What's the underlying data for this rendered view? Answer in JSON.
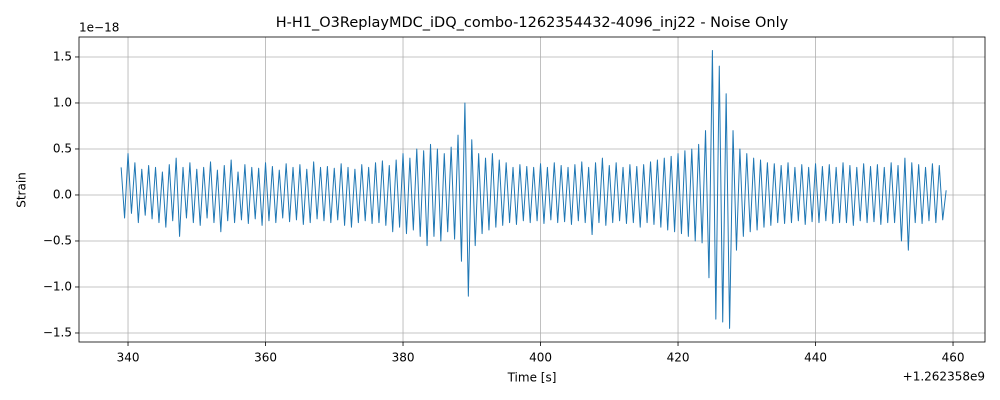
{
  "chart_data": {
    "type": "line",
    "title": "H-H1_O3ReplayMDC_iDQ_combo-1262354432-4096_inj22 - Noise Only",
    "xlabel": "Time [s]",
    "ylabel": "Strain",
    "x_offset_label": "+1.262358e9",
    "y_offset_label": "1e−18",
    "color": "#1f77b4",
    "grid": true,
    "xlim": [
      332.87,
      464.65
    ],
    "ylim": [
      -1.598,
      1.717
    ],
    "xticks": [
      340,
      360,
      380,
      400,
      420,
      440,
      460
    ],
    "yticks": [
      {
        "value": -1.5,
        "label": "−1.5"
      },
      {
        "value": -1.0,
        "label": "−1.0"
      },
      {
        "value": -0.5,
        "label": "−0.5"
      },
      {
        "value": 0,
        "label": "0.0"
      },
      0.5,
      {
        "value": 1.0,
        "label": "1.0"
      },
      1.5
    ],
    "x": [
      339,
      339.5,
      340,
      340.5,
      341,
      341.5,
      342,
      342.5,
      343,
      343.5,
      344,
      344.5,
      345,
      345.5,
      346,
      346.5,
      347,
      347.5,
      348,
      348.5,
      349,
      349.5,
      350,
      350.5,
      351,
      351.5,
      352,
      352.5,
      353,
      353.5,
      354,
      354.5,
      355,
      355.5,
      356,
      356.5,
      357,
      357.5,
      358,
      358.5,
      359,
      359.5,
      360,
      360.5,
      361,
      361.5,
      362,
      362.5,
      363,
      363.5,
      364,
      364.5,
      365,
      365.5,
      366,
      366.5,
      367,
      367.5,
      368,
      368.5,
      369,
      369.5,
      370,
      370.5,
      371,
      371.5,
      372,
      372.5,
      373,
      373.5,
      374,
      374.5,
      375,
      375.5,
      376,
      376.5,
      377,
      377.5,
      378,
      378.5,
      379,
      379.5,
      380,
      380.5,
      381,
      381.5,
      382,
      382.5,
      383,
      383.5,
      384,
      384.5,
      385,
      385.5,
      386,
      386.5,
      387,
      387.5,
      388,
      388.5,
      389,
      389.5,
      390,
      390.5,
      391,
      391.5,
      392,
      392.5,
      393,
      393.5,
      394,
      394.5,
      395,
      395.5,
      396,
      396.5,
      397,
      397.5,
      398,
      398.5,
      399,
      399.5,
      400,
      400.5,
      401,
      401.5,
      402,
      402.5,
      403,
      403.5,
      404,
      404.5,
      405,
      405.5,
      406,
      406.5,
      407,
      407.5,
      408,
      408.5,
      409,
      409.5,
      410,
      410.5,
      411,
      411.5,
      412,
      412.5,
      413,
      413.5,
      414,
      414.5,
      415,
      415.5,
      416,
      416.5,
      417,
      417.5,
      418,
      418.5,
      419,
      419.5,
      420,
      420.5,
      421,
      421.5,
      422,
      422.5,
      423,
      423.5,
      424,
      424.5,
      425,
      425.5,
      426,
      426.5,
      427,
      427.5,
      428,
      428.5,
      429,
      429.5,
      430,
      430.5,
      431,
      431.5,
      432,
      432.5,
      433,
      433.5,
      434,
      434.5,
      435,
      435.5,
      436,
      436.5,
      437,
      437.5,
      438,
      438.5,
      439,
      439.5,
      440,
      440.5,
      441,
      441.5,
      442,
      442.5,
      443,
      443.5,
      444,
      444.5,
      445,
      445.5,
      446,
      446.5,
      447,
      447.5,
      448,
      448.5,
      449,
      449.5,
      450,
      450.5,
      451,
      451.5,
      452,
      452.5,
      453,
      453.5,
      454,
      454.5,
      455,
      455.5,
      456,
      456.5,
      457,
      457.5,
      458,
      458.5,
      459
    ],
    "values": [
      0.3,
      -0.25,
      0.45,
      -0.2,
      0.35,
      -0.3,
      0.28,
      -0.22,
      0.32,
      -0.26,
      0.3,
      -0.3,
      0.25,
      -0.35,
      0.33,
      -0.28,
      0.4,
      -0.45,
      0.3,
      -0.25,
      0.35,
      -0.3,
      0.28,
      -0.33,
      0.3,
      -0.25,
      0.36,
      -0.3,
      0.27,
      -0.4,
      0.32,
      -0.28,
      0.38,
      -0.3,
      0.25,
      -0.27,
      0.33,
      -0.31,
      0.3,
      -0.26,
      0.29,
      -0.33,
      0.35,
      -0.28,
      0.31,
      -0.3,
      0.27,
      -0.25,
      0.34,
      -0.29,
      0.3,
      -0.27,
      0.33,
      -0.32,
      0.28,
      -0.3,
      0.36,
      -0.26,
      0.3,
      -0.28,
      0.31,
      -0.3,
      0.29,
      -0.27,
      0.34,
      -0.33,
      0.3,
      -0.35,
      0.28,
      -0.3,
      0.33,
      -0.28,
      0.3,
      -0.31,
      0.35,
      -0.3,
      0.37,
      -0.33,
      0.32,
      -0.4,
      0.38,
      -0.35,
      0.45,
      -0.42,
      0.4,
      -0.38,
      0.5,
      -0.45,
      0.48,
      -0.55,
      0.55,
      -0.45,
      0.5,
      -0.5,
      0.45,
      -0.4,
      0.52,
      -0.48,
      0.65,
      -0.72,
      1.0,
      -1.1,
      0.6,
      -0.55,
      0.45,
      -0.42,
      0.4,
      -0.38,
      0.45,
      -0.35,
      0.38,
      -0.33,
      0.35,
      -0.3,
      0.3,
      -0.32,
      0.33,
      -0.28,
      0.31,
      -0.3,
      0.3,
      -0.28,
      0.34,
      -0.31,
      0.3,
      -0.27,
      0.35,
      -0.3,
      0.32,
      -0.29,
      0.3,
      -0.32,
      0.33,
      -0.28,
      0.36,
      -0.3,
      0.3,
      -0.43,
      0.35,
      -0.3,
      0.4,
      -0.33,
      0.32,
      -0.3,
      0.35,
      -0.28,
      0.3,
      -0.31,
      0.33,
      -0.3,
      0.31,
      -0.35,
      0.33,
      -0.3,
      0.36,
      -0.32,
      0.38,
      -0.35,
      0.4,
      -0.38,
      0.42,
      -0.4,
      0.45,
      -0.42,
      0.48,
      -0.45,
      0.5,
      -0.5,
      0.55,
      -0.52,
      0.7,
      -0.9,
      1.57,
      -1.35,
      1.4,
      -1.38,
      1.1,
      -1.45,
      0.7,
      -0.6,
      0.5,
      -0.45,
      0.45,
      -0.4,
      0.4,
      -0.38,
      0.38,
      -0.35,
      0.35,
      -0.33,
      0.34,
      -0.3,
      0.32,
      -0.31,
      0.35,
      -0.3,
      0.3,
      -0.28,
      0.33,
      -0.32,
      0.3,
      -0.29,
      0.34,
      -0.3,
      0.31,
      -0.28,
      0.33,
      -0.31,
      0.3,
      -0.3,
      0.35,
      -0.3,
      0.32,
      -0.33,
      0.3,
      -0.28,
      0.34,
      -0.3,
      0.31,
      -0.29,
      0.33,
      -0.32,
      0.3,
      -0.3,
      0.35,
      -0.3,
      0.32,
      -0.5,
      0.4,
      -0.6,
      0.35,
      -0.3,
      0.33,
      -0.31,
      0.3,
      -0.28,
      0.34,
      -0.3,
      0.32,
      -0.27,
      0.05
    ]
  }
}
